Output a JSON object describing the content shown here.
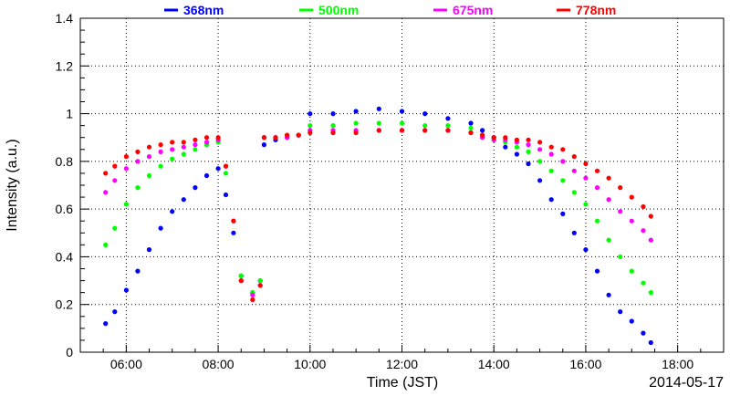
{
  "chart_data": {
    "type": "scatter",
    "xlabel": "Time (JST)",
    "ylabel": "Intensity (a.u.)",
    "date_label": "2014-05-17",
    "xlim": [
      "05:00",
      "19:00"
    ],
    "ylim": [
      0,
      1.4
    ],
    "x_ticks": [
      "06:00",
      "08:00",
      "10:00",
      "12:00",
      "14:00",
      "16:00",
      "18:00"
    ],
    "y_ticks": [
      "0",
      "0.2",
      "0.4",
      "0.6",
      "0.8",
      "1",
      "1.2",
      "1.4"
    ],
    "grid": true,
    "legend_position": "top",
    "series": [
      {
        "name": "368nm",
        "color": "#0000ff",
        "points": [
          [
            "05:33",
            0.12
          ],
          [
            "05:45",
            0.17
          ],
          [
            "06:00",
            0.26
          ],
          [
            "06:15",
            0.34
          ],
          [
            "06:30",
            0.43
          ],
          [
            "06:45",
            0.52
          ],
          [
            "07:00",
            0.59
          ],
          [
            "07:15",
            0.64
          ],
          [
            "07:30",
            0.69
          ],
          [
            "07:45",
            0.74
          ],
          [
            "08:00",
            0.77
          ],
          [
            "08:10",
            0.66
          ],
          [
            "08:20",
            0.5
          ],
          [
            "08:30",
            0.32
          ],
          [
            "08:45",
            0.25
          ],
          [
            "08:55",
            0.3
          ],
          [
            "09:00",
            0.87
          ],
          [
            "09:15",
            0.89
          ],
          [
            "09:30",
            0.9
          ],
          [
            "09:45",
            0.91
          ],
          [
            "10:00",
            1.0
          ],
          [
            "10:30",
            1.0
          ],
          [
            "11:00",
            1.01
          ],
          [
            "11:30",
            1.02
          ],
          [
            "12:00",
            1.01
          ],
          [
            "12:30",
            1.0
          ],
          [
            "13:00",
            0.98
          ],
          [
            "13:30",
            0.96
          ],
          [
            "13:45",
            0.93
          ],
          [
            "14:00",
            0.9
          ],
          [
            "14:15",
            0.86
          ],
          [
            "14:30",
            0.83
          ],
          [
            "14:45",
            0.79
          ],
          [
            "15:00",
            0.72
          ],
          [
            "15:15",
            0.64
          ],
          [
            "15:30",
            0.58
          ],
          [
            "15:45",
            0.5
          ],
          [
            "16:00",
            0.43
          ],
          [
            "16:15",
            0.34
          ],
          [
            "16:30",
            0.24
          ],
          [
            "16:45",
            0.17
          ],
          [
            "17:00",
            0.13
          ],
          [
            "17:15",
            0.08
          ],
          [
            "17:25",
            0.04
          ]
        ]
      },
      {
        "name": "500nm",
        "color": "#00ff00",
        "points": [
          [
            "05:33",
            0.45
          ],
          [
            "05:45",
            0.52
          ],
          [
            "06:00",
            0.62
          ],
          [
            "06:15",
            0.69
          ],
          [
            "06:30",
            0.74
          ],
          [
            "06:45",
            0.78
          ],
          [
            "07:00",
            0.81
          ],
          [
            "07:15",
            0.83
          ],
          [
            "07:30",
            0.85
          ],
          [
            "07:45",
            0.87
          ],
          [
            "08:00",
            0.88
          ],
          [
            "08:10",
            0.75
          ],
          [
            "08:20",
            0.55
          ],
          [
            "08:30",
            0.32
          ],
          [
            "08:45",
            0.25
          ],
          [
            "08:55",
            0.3
          ],
          [
            "09:00",
            0.9
          ],
          [
            "09:15",
            0.9
          ],
          [
            "09:30",
            0.91
          ],
          [
            "09:45",
            0.91
          ],
          [
            "10:00",
            0.95
          ],
          [
            "10:30",
            0.95
          ],
          [
            "11:00",
            0.96
          ],
          [
            "11:30",
            0.96
          ],
          [
            "12:00",
            0.96
          ],
          [
            "12:30",
            0.95
          ],
          [
            "13:00",
            0.95
          ],
          [
            "13:30",
            0.94
          ],
          [
            "13:45",
            0.91
          ],
          [
            "14:00",
            0.89
          ],
          [
            "14:15",
            0.88
          ],
          [
            "14:30",
            0.86
          ],
          [
            "14:45",
            0.84
          ],
          [
            "15:00",
            0.8
          ],
          [
            "15:15",
            0.76
          ],
          [
            "15:30",
            0.72
          ],
          [
            "15:45",
            0.67
          ],
          [
            "16:00",
            0.62
          ],
          [
            "16:15",
            0.55
          ],
          [
            "16:30",
            0.47
          ],
          [
            "16:45",
            0.4
          ],
          [
            "17:00",
            0.34
          ],
          [
            "17:15",
            0.29
          ],
          [
            "17:25",
            0.25
          ]
        ]
      },
      {
        "name": "675nm",
        "color": "#ff00ff",
        "points": [
          [
            "05:33",
            0.67
          ],
          [
            "05:45",
            0.72
          ],
          [
            "06:00",
            0.77
          ],
          [
            "06:15",
            0.8
          ],
          [
            "06:30",
            0.82
          ],
          [
            "06:45",
            0.84
          ],
          [
            "07:00",
            0.85
          ],
          [
            "07:15",
            0.86
          ],
          [
            "07:30",
            0.87
          ],
          [
            "07:45",
            0.88
          ],
          [
            "08:00",
            0.89
          ],
          [
            "08:10",
            0.78
          ],
          [
            "08:20",
            0.55
          ],
          [
            "08:30",
            0.3
          ],
          [
            "08:45",
            0.24
          ],
          [
            "08:55",
            0.28
          ],
          [
            "09:00",
            0.9
          ],
          [
            "09:15",
            0.9
          ],
          [
            "09:30",
            0.9
          ],
          [
            "09:45",
            0.91
          ],
          [
            "10:00",
            0.93
          ],
          [
            "10:30",
            0.93
          ],
          [
            "11:00",
            0.93
          ],
          [
            "11:30",
            0.93
          ],
          [
            "12:00",
            0.93
          ],
          [
            "12:30",
            0.93
          ],
          [
            "13:00",
            0.93
          ],
          [
            "13:30",
            0.92
          ],
          [
            "13:45",
            0.9
          ],
          [
            "14:00",
            0.89
          ],
          [
            "14:15",
            0.89
          ],
          [
            "14:30",
            0.88
          ],
          [
            "14:45",
            0.87
          ],
          [
            "15:00",
            0.85
          ],
          [
            "15:15",
            0.83
          ],
          [
            "15:30",
            0.8
          ],
          [
            "15:45",
            0.76
          ],
          [
            "16:00",
            0.73
          ],
          [
            "16:15",
            0.69
          ],
          [
            "16:30",
            0.64
          ],
          [
            "16:45",
            0.59
          ],
          [
            "17:00",
            0.55
          ],
          [
            "17:15",
            0.51
          ],
          [
            "17:25",
            0.47
          ]
        ]
      },
      {
        "name": "778nm",
        "color": "#ff0000",
        "points": [
          [
            "05:33",
            0.75
          ],
          [
            "05:45",
            0.78
          ],
          [
            "06:00",
            0.82
          ],
          [
            "06:15",
            0.84
          ],
          [
            "06:30",
            0.86
          ],
          [
            "06:45",
            0.87
          ],
          [
            "07:00",
            0.88
          ],
          [
            "07:15",
            0.88
          ],
          [
            "07:30",
            0.89
          ],
          [
            "07:45",
            0.9
          ],
          [
            "08:00",
            0.9
          ],
          [
            "08:10",
            0.78
          ],
          [
            "08:20",
            0.55
          ],
          [
            "08:30",
            0.3
          ],
          [
            "08:45",
            0.22
          ],
          [
            "08:55",
            0.28
          ],
          [
            "09:00",
            0.9
          ],
          [
            "09:15",
            0.9
          ],
          [
            "09:30",
            0.91
          ],
          [
            "09:45",
            0.91
          ],
          [
            "10:00",
            0.92
          ],
          [
            "10:30",
            0.92
          ],
          [
            "11:00",
            0.92
          ],
          [
            "11:30",
            0.93
          ],
          [
            "12:00",
            0.93
          ],
          [
            "12:30",
            0.93
          ],
          [
            "13:00",
            0.93
          ],
          [
            "13:30",
            0.92
          ],
          [
            "13:45",
            0.91
          ],
          [
            "14:00",
            0.9
          ],
          [
            "14:15",
            0.9
          ],
          [
            "14:30",
            0.89
          ],
          [
            "14:45",
            0.89
          ],
          [
            "15:00",
            0.88
          ],
          [
            "15:15",
            0.86
          ],
          [
            "15:30",
            0.85
          ],
          [
            "15:45",
            0.82
          ],
          [
            "16:00",
            0.79
          ],
          [
            "16:15",
            0.76
          ],
          [
            "16:30",
            0.73
          ],
          [
            "16:45",
            0.69
          ],
          [
            "17:00",
            0.65
          ],
          [
            "17:15",
            0.61
          ],
          [
            "17:25",
            0.57
          ]
        ]
      }
    ]
  }
}
